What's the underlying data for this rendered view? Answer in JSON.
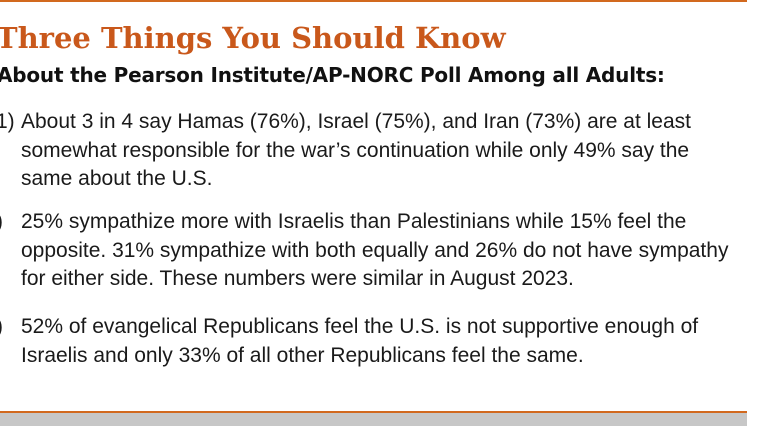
{
  "header": {
    "title": "Three Things You Should Know",
    "subtitle": "About the Pearson Institute/AP-NORC Poll Among all Adults:"
  },
  "items": [
    {
      "number": "1)",
      "text": "About 3 in 4 say Hamas (76%), Israel (75%), and Iran (73%) are at least\nsomewhat responsible for the war’s continuation while only 49% say the\nsame about the U.S."
    },
    {
      "number": ")",
      "text": "25% sympathize more with Israelis than Palestinians while 15% feel the\nopposite. 31% sympathize with both equally and 26% do not have sympathy\nfor either side. These numbers were similar in August 2023."
    },
    {
      "number": ")",
      "text": "52% of evangelical Republicans feel the U.S. is not supportive enough of\nIsraelis and only 33% of all other Republicans feel the same."
    }
  ],
  "colors": {
    "accent": "#c9581b",
    "rule": "#d2691e",
    "footer_band": "#c7c7c7"
  }
}
